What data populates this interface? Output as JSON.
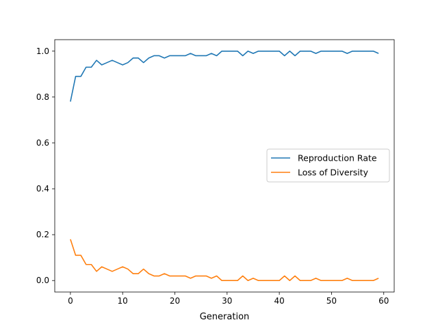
{
  "chart_data": {
    "type": "line",
    "title": "",
    "xlabel": "Generation",
    "ylabel": "",
    "xlim": [
      -3,
      62
    ],
    "ylim": [
      -0.05,
      1.05
    ],
    "xticks": [
      0,
      10,
      20,
      30,
      40,
      50,
      60
    ],
    "yticks": [
      0.0,
      0.2,
      0.4,
      0.6,
      0.8,
      1.0
    ],
    "xtick_labels": [
      "0",
      "10",
      "20",
      "30",
      "40",
      "50",
      "60"
    ],
    "ytick_labels": [
      "0.0",
      "0.2",
      "0.4",
      "0.6",
      "0.8",
      "1.0"
    ],
    "grid": false,
    "legend_position": "center-right",
    "x": [
      0,
      1,
      2,
      3,
      4,
      5,
      6,
      7,
      8,
      9,
      10,
      11,
      12,
      13,
      14,
      15,
      16,
      17,
      18,
      19,
      20,
      21,
      22,
      23,
      24,
      25,
      26,
      27,
      28,
      29,
      30,
      31,
      32,
      33,
      34,
      35,
      36,
      37,
      38,
      39,
      40,
      41,
      42,
      43,
      44,
      45,
      46,
      47,
      48,
      49,
      50,
      51,
      52,
      53,
      54,
      55,
      56,
      57,
      58,
      59
    ],
    "series": [
      {
        "name": "Reproduction Rate",
        "color": "#1f77b4",
        "values": [
          0.78,
          0.89,
          0.89,
          0.93,
          0.93,
          0.96,
          0.94,
          0.95,
          0.96,
          0.95,
          0.94,
          0.95,
          0.97,
          0.97,
          0.95,
          0.97,
          0.98,
          0.98,
          0.97,
          0.98,
          0.98,
          0.98,
          0.98,
          0.99,
          0.98,
          0.98,
          0.98,
          0.99,
          0.98,
          1.0,
          1.0,
          1.0,
          1.0,
          0.98,
          1.0,
          0.99,
          1.0,
          1.0,
          1.0,
          1.0,
          1.0,
          0.98,
          1.0,
          0.98,
          1.0,
          1.0,
          1.0,
          0.99,
          1.0,
          1.0,
          1.0,
          1.0,
          1.0,
          0.99,
          1.0,
          1.0,
          1.0,
          1.0,
          1.0,
          0.99
        ]
      },
      {
        "name": "Loss of Diversity",
        "color": "#ff7f0e",
        "values": [
          0.18,
          0.11,
          0.11,
          0.07,
          0.07,
          0.04,
          0.06,
          0.05,
          0.04,
          0.05,
          0.06,
          0.05,
          0.03,
          0.03,
          0.05,
          0.03,
          0.02,
          0.02,
          0.03,
          0.02,
          0.02,
          0.02,
          0.02,
          0.01,
          0.02,
          0.02,
          0.02,
          0.01,
          0.02,
          0.0,
          0.0,
          0.0,
          0.0,
          0.02,
          0.0,
          0.01,
          0.0,
          0.0,
          0.0,
          0.0,
          0.0,
          0.02,
          0.0,
          0.02,
          0.0,
          0.0,
          0.0,
          0.01,
          0.0,
          0.0,
          0.0,
          0.0,
          0.0,
          0.01,
          0.0,
          0.0,
          0.0,
          0.0,
          0.0,
          0.01
        ]
      }
    ]
  }
}
